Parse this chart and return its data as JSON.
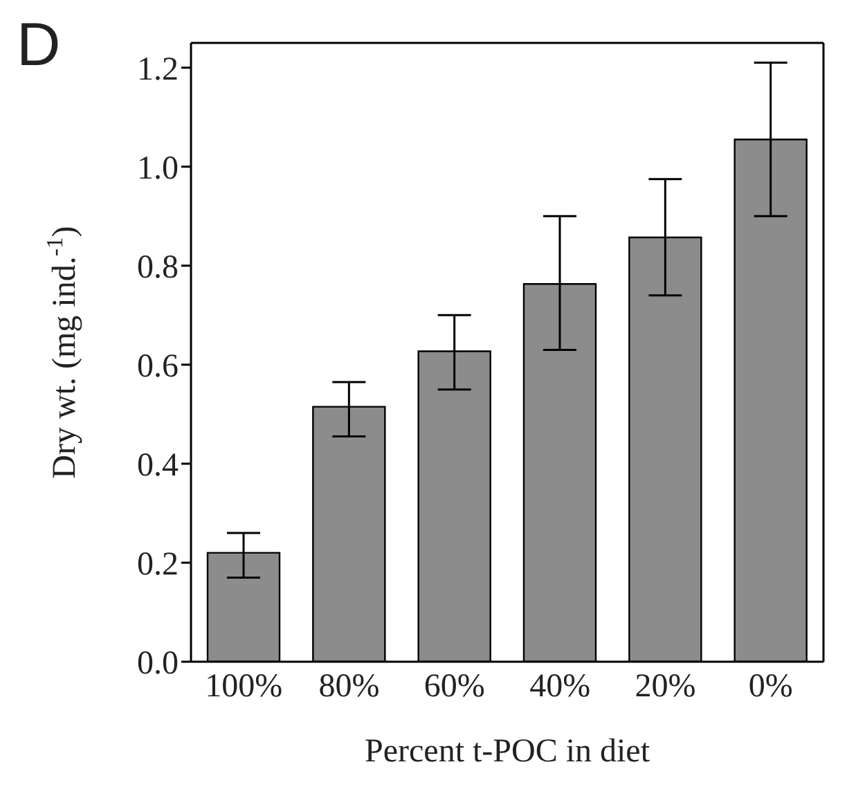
{
  "chart_data": {
    "type": "bar",
    "annotations": [
      "D"
    ],
    "xlabel": "Percent t-POC in diet",
    "ylabel": "Dry wt. (mg ind.$^{-1}$)",
    "categories": [
      "100%",
      "80%",
      "60%",
      "40%",
      "20%",
      "0%"
    ],
    "values": [
      0.22,
      0.515,
      0.627,
      0.763,
      0.857,
      1.055
    ],
    "errors": [
      [
        0.17,
        0.26
      ],
      [
        0.455,
        0.565
      ],
      [
        0.55,
        0.7
      ],
      [
        0.63,
        0.9
      ],
      [
        0.74,
        0.975
      ],
      [
        0.9,
        1.21
      ]
    ],
    "color": "#8c8c8c",
    "ylim": [
      0,
      1.25
    ],
    "yticks": [
      {
        "value": 0,
        "label": "0.0"
      },
      {
        "value": 0.2,
        "label": "0.2"
      },
      {
        "value": 0.4,
        "label": "0.4"
      },
      {
        "value": 0.6,
        "label": "0.6"
      },
      {
        "value": 0.8,
        "label": "0.8"
      },
      {
        "value": 1,
        "label": "1.0"
      },
      {
        "value": 1.2,
        "label": "1.2"
      }
    ],
    "grid": false,
    "legend": false
  }
}
